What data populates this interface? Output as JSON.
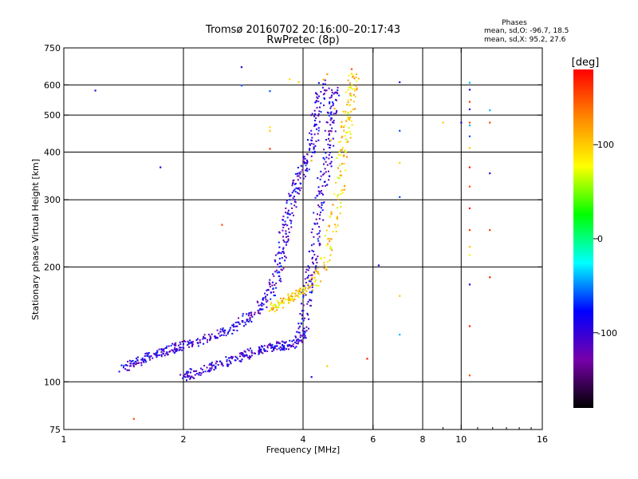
{
  "header": {
    "title_line1": "Tromsø 20160702 20:16:00–20:17:43",
    "title_line2": "RwPretec (8p)"
  },
  "phases": {
    "heading": "Phases",
    "line_o": "mean, sd,O: -96.7, 18.5",
    "line_x": "mean, sd,X:  95.2, 27.6"
  },
  "colorbar": {
    "unit_label": "[deg]",
    "min": -180,
    "max": 180,
    "ticks": [
      100,
      0,
      -100
    ],
    "tick_labels": [
      "100",
      "0",
      "-100"
    ],
    "stops": [
      "#000000",
      "#7700aa",
      "#0000ff",
      "#00ffff",
      "#00ff00",
      "#ffff00",
      "#ff8800",
      "#ff0000"
    ]
  },
  "chart_data": {
    "type": "scatter",
    "title": "Tromsø 20160702 20:16:00–20:17:43",
    "subtitle": "RwPretec (8p)",
    "xlabel": "Frequency [MHz]",
    "ylabel": "Stationary phase Virtual Height [km]",
    "x_scale": "log",
    "y_scale": "log",
    "xlim": [
      1,
      16
    ],
    "ylim": [
      75,
      750
    ],
    "x_ticks": [
      1,
      2,
      4,
      6,
      8,
      10,
      16
    ],
    "x_tick_labels": [
      "1",
      "2",
      "4",
      "6",
      "8",
      "10",
      "16"
    ],
    "x_minor_ticks": [
      9,
      11,
      12,
      13,
      14,
      15
    ],
    "y_ticks": [
      75,
      100,
      200,
      300,
      400,
      500,
      600,
      750
    ],
    "y_tick_labels": [
      "75",
      "100",
      "200",
      "300",
      "400",
      "500",
      "600",
      "750"
    ],
    "grid": true,
    "grid_x": [
      2,
      4,
      6,
      8,
      10
    ],
    "grid_y": [
      100,
      200,
      300,
      400,
      500,
      600
    ],
    "color_by": "phase [deg]",
    "traces": [
      {
        "phase": -100,
        "points": [
          [
            1.4,
            108
          ],
          [
            1.5,
            112
          ],
          [
            1.6,
            115
          ],
          [
            1.7,
            118
          ],
          [
            1.8,
            120
          ],
          [
            1.9,
            122
          ],
          [
            2.0,
            125
          ],
          [
            2.2,
            128
          ],
          [
            2.4,
            132
          ],
          [
            2.6,
            137
          ],
          [
            2.8,
            143
          ],
          [
            3.0,
            150
          ],
          [
            3.2,
            160
          ],
          [
            3.35,
            175
          ],
          [
            3.45,
            195
          ],
          [
            3.55,
            220
          ],
          [
            3.6,
            250
          ],
          [
            3.7,
            280
          ],
          [
            3.8,
            310
          ],
          [
            3.9,
            340
          ],
          [
            4.05,
            370
          ],
          [
            4.2,
            410
          ],
          [
            4.3,
            470
          ],
          [
            4.4,
            540
          ],
          [
            4.5,
            610
          ]
        ]
      },
      {
        "phase": -100,
        "points": [
          [
            2.0,
            103
          ],
          [
            2.1,
            105
          ],
          [
            2.3,
            108
          ],
          [
            2.5,
            112
          ],
          [
            2.7,
            115
          ],
          [
            2.9,
            118
          ],
          [
            3.1,
            121
          ],
          [
            3.3,
            123
          ],
          [
            3.5,
            124
          ],
          [
            3.7,
            125
          ],
          [
            3.9,
            128
          ],
          [
            4.0,
            135
          ],
          [
            4.05,
            155
          ],
          [
            4.1,
            180
          ],
          [
            4.2,
            200
          ],
          [
            4.3,
            240
          ],
          [
            4.4,
            290
          ],
          [
            4.5,
            340
          ],
          [
            4.6,
            390
          ],
          [
            4.7,
            460
          ],
          [
            4.75,
            530
          ],
          [
            4.8,
            590
          ]
        ]
      },
      {
        "phase": 95,
        "points": [
          [
            3.3,
            155
          ],
          [
            3.5,
            160
          ],
          [
            3.7,
            165
          ],
          [
            3.9,
            170
          ],
          [
            4.2,
            178
          ],
          [
            4.5,
            200
          ],
          [
            4.7,
            245
          ],
          [
            4.9,
            300
          ],
          [
            5.0,
            380
          ],
          [
            5.1,
            440
          ],
          [
            5.2,
            500
          ],
          [
            5.3,
            570
          ],
          [
            5.4,
            640
          ]
        ]
      }
    ],
    "points": [
      {
        "x": 1.2,
        "y": 580,
        "phase": -100
      },
      {
        "x": 1.75,
        "y": 365,
        "phase": -100
      },
      {
        "x": 2.5,
        "y": 258,
        "phase": 150
      },
      {
        "x": 2.8,
        "y": 668,
        "phase": -100
      },
      {
        "x": 2.8,
        "y": 598,
        "phase": -60
      },
      {
        "x": 1.5,
        "y": 80,
        "phase": 150
      },
      {
        "x": 3.3,
        "y": 465,
        "phase": 90
      },
      {
        "x": 3.3,
        "y": 455,
        "phase": 100
      },
      {
        "x": 3.3,
        "y": 408,
        "phase": 160
      },
      {
        "x": 3.3,
        "y": 578,
        "phase": -60
      },
      {
        "x": 3.7,
        "y": 621,
        "phase": 90
      },
      {
        "x": 3.9,
        "y": 610,
        "phase": 100
      },
      {
        "x": 5.3,
        "y": 660,
        "phase": 150
      },
      {
        "x": 5.3,
        "y": 642,
        "phase": 90
      },
      {
        "x": 5.8,
        "y": 115,
        "phase": 170
      },
      {
        "x": 6.2,
        "y": 202,
        "phase": -100
      },
      {
        "x": 7.0,
        "y": 610,
        "phase": -100
      },
      {
        "x": 7.0,
        "y": 455,
        "phase": -60
      },
      {
        "x": 7.0,
        "y": 375,
        "phase": 95
      },
      {
        "x": 7.0,
        "y": 305,
        "phase": -60
      },
      {
        "x": 7.0,
        "y": 168,
        "phase": 100
      },
      {
        "x": 7.0,
        "y": 133,
        "phase": -40
      },
      {
        "x": 9.0,
        "y": 478,
        "phase": 100
      },
      {
        "x": 10.0,
        "y": 478,
        "phase": -100
      },
      {
        "x": 10.5,
        "y": 608,
        "phase": -40
      },
      {
        "x": 10.5,
        "y": 583,
        "phase": -100
      },
      {
        "x": 10.5,
        "y": 542,
        "phase": 160
      },
      {
        "x": 10.5,
        "y": 518,
        "phase": -100
      },
      {
        "x": 10.5,
        "y": 478,
        "phase": 150
      },
      {
        "x": 10.5,
        "y": 470,
        "phase": -40
      },
      {
        "x": 10.5,
        "y": 440,
        "phase": -60
      },
      {
        "x": 10.5,
        "y": 410,
        "phase": 100
      },
      {
        "x": 10.5,
        "y": 365,
        "phase": 170
      },
      {
        "x": 10.5,
        "y": 325,
        "phase": 150
      },
      {
        "x": 10.5,
        "y": 285,
        "phase": 170
      },
      {
        "x": 10.5,
        "y": 250,
        "phase": 160
      },
      {
        "x": 10.5,
        "y": 226,
        "phase": 100
      },
      {
        "x": 10.5,
        "y": 215,
        "phase": 80
      },
      {
        "x": 10.5,
        "y": 180,
        "phase": -100
      },
      {
        "x": 10.5,
        "y": 140,
        "phase": 170
      },
      {
        "x": 10.5,
        "y": 104,
        "phase": 150
      },
      {
        "x": 11.8,
        "y": 515,
        "phase": -40
      },
      {
        "x": 11.8,
        "y": 478,
        "phase": 150
      },
      {
        "x": 11.8,
        "y": 352,
        "phase": -100
      },
      {
        "x": 11.8,
        "y": 250,
        "phase": 160
      },
      {
        "x": 11.8,
        "y": 188,
        "phase": 170
      },
      {
        "x": 4.5,
        "y": 620,
        "phase": 110
      },
      {
        "x": 4.6,
        "y": 640,
        "phase": 120
      },
      {
        "x": 4.7,
        "y": 430,
        "phase": 100
      },
      {
        "x": 4.8,
        "y": 520,
        "phase": 110
      },
      {
        "x": 5.0,
        "y": 480,
        "phase": 110
      },
      {
        "x": 4.2,
        "y": 380,
        "phase": 110
      },
      {
        "x": 4.6,
        "y": 110,
        "phase": 100
      },
      {
        "x": 4.2,
        "y": 103,
        "phase": -100
      }
    ]
  }
}
